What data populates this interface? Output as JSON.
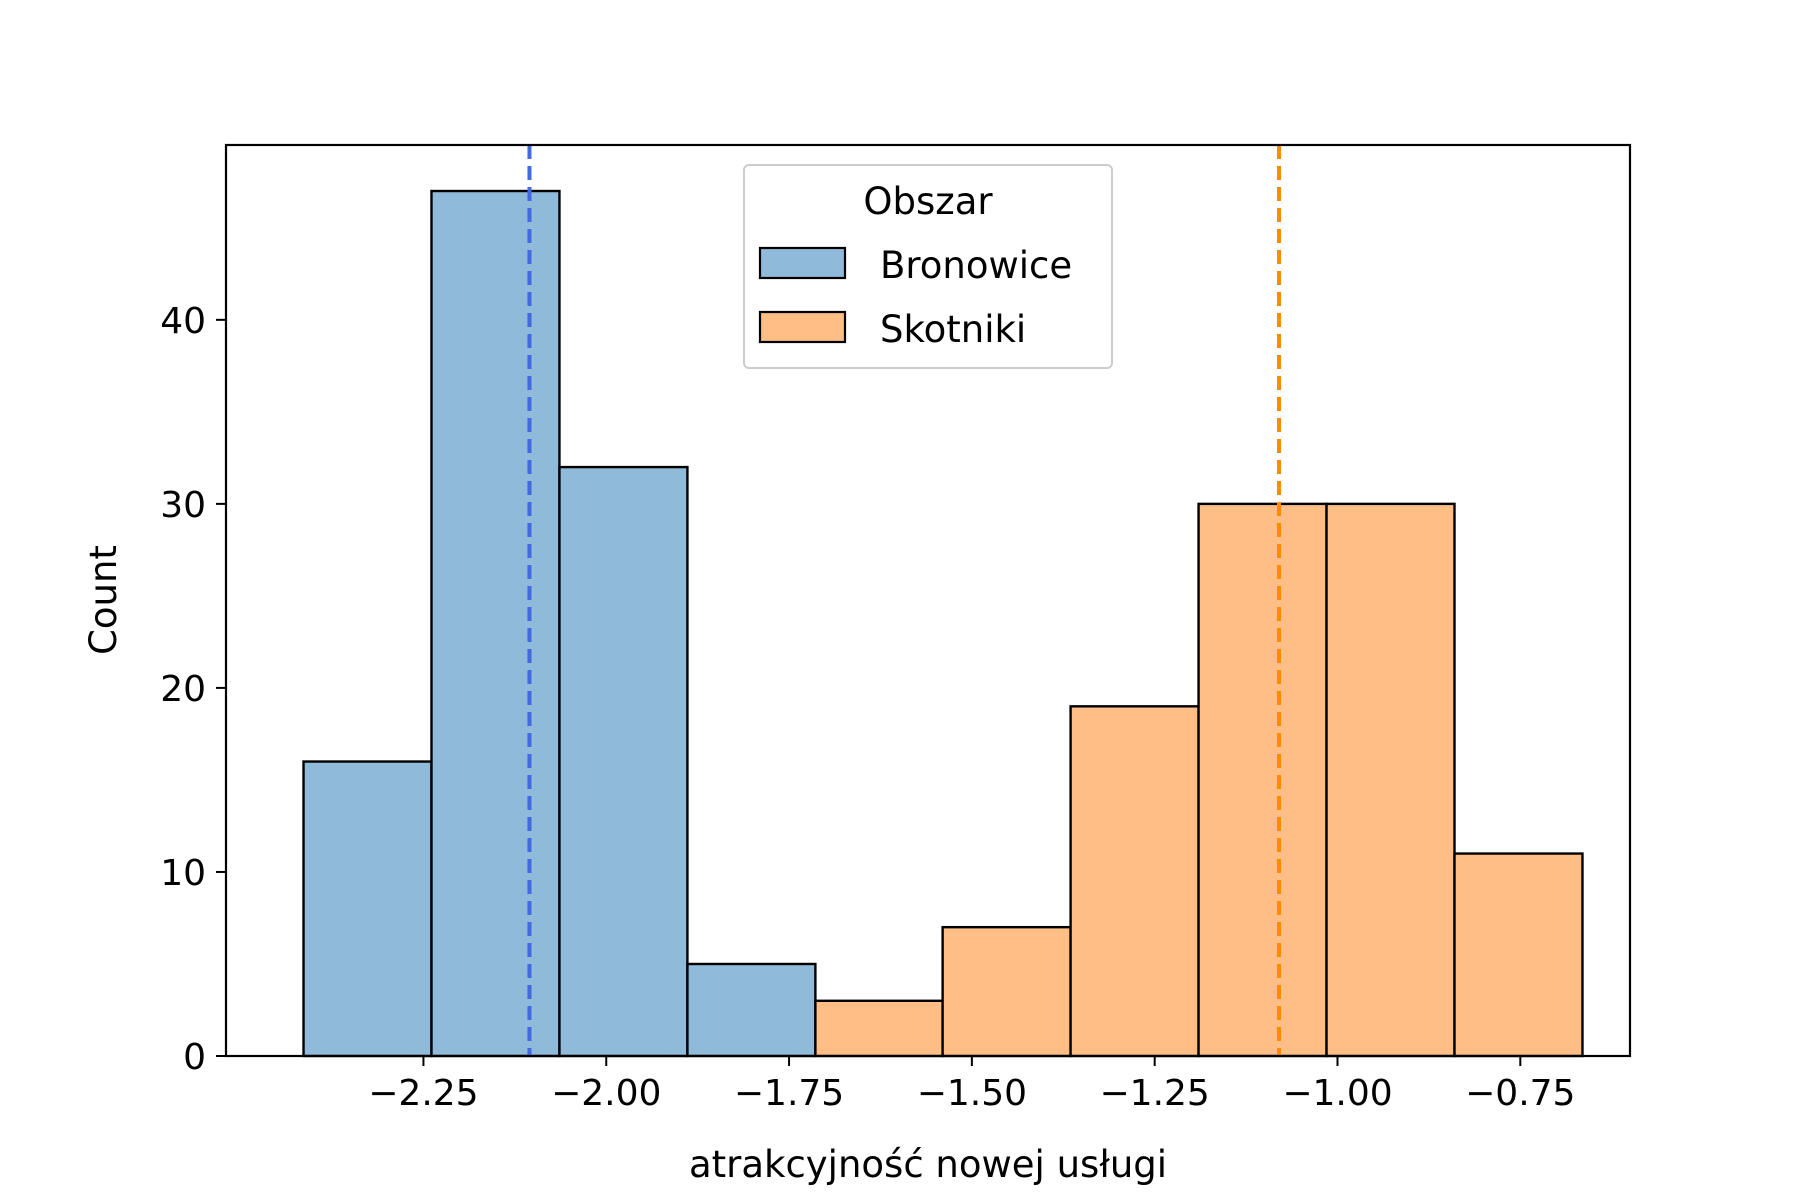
{
  "chart_data": {
    "type": "bar",
    "xlabel": "atrakcyjność nowej usługi",
    "ylabel": "Count",
    "xlim": [
      -2.52,
      -0.6
    ],
    "ylim": [
      0,
      49.5
    ],
    "x_ticks": [
      -2.25,
      -2.0,
      -1.75,
      -1.5,
      -1.25,
      -1.0,
      -0.75
    ],
    "x_tick_labels": [
      "−2.25",
      "−2.00",
      "−1.75",
      "−1.50",
      "−1.25",
      "−1.00",
      "−0.75"
    ],
    "y_ticks": [
      0,
      10,
      20,
      30,
      40
    ],
    "y_tick_labels": [
      "0",
      "10",
      "20",
      "30",
      "40"
    ],
    "grid": false,
    "legend": {
      "title": "Obszar",
      "placement": "top-center"
    },
    "series": [
      {
        "name": "Bronowice",
        "color": "#8fbad9",
        "bins": [
          {
            "x0": -2.414,
            "x1": -2.239,
            "count": 16
          },
          {
            "x0": -2.239,
            "x1": -2.064,
            "count": 47
          },
          {
            "x0": -2.064,
            "x1": -1.889,
            "count": 32
          },
          {
            "x0": -1.889,
            "x1": -1.714,
            "count": 5
          }
        ],
        "mean_line": {
          "x": -2.105,
          "color": "#4169e1"
        }
      },
      {
        "name": "Skotniki",
        "color": "#febe86",
        "bins": [
          {
            "x0": -1.714,
            "x1": -1.54,
            "count": 3
          },
          {
            "x0": -1.54,
            "x1": -1.365,
            "count": 7
          },
          {
            "x0": -1.365,
            "x1": -1.19,
            "count": 19
          },
          {
            "x0": -1.19,
            "x1": -1.015,
            "count": 30
          },
          {
            "x0": -1.015,
            "x1": -0.84,
            "count": 30
          },
          {
            "x0": -0.84,
            "x1": -0.665,
            "count": 11
          }
        ],
        "mean_line": {
          "x": -1.08,
          "color": "#ff8c00"
        }
      }
    ]
  }
}
